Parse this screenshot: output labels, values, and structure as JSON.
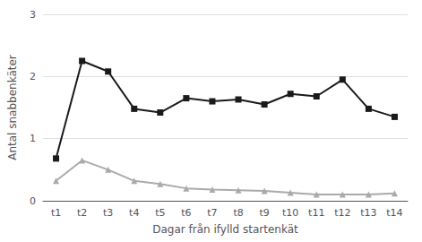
{
  "chart_data": {
    "type": "line",
    "xlabel": "Dagar från ifylld startenkät",
    "ylabel": "Antal snabbenkäter",
    "categories": [
      "t1",
      "t2",
      "t3",
      "t4",
      "t5",
      "t6",
      "t7",
      "t8",
      "t9",
      "t10",
      "t11",
      "t12",
      "t13",
      "t14"
    ],
    "series": [
      {
        "color": "#1a1a1a",
        "marker": "square",
        "values": [
          0.68,
          2.25,
          2.08,
          1.48,
          1.42,
          1.65,
          1.6,
          1.63,
          1.55,
          1.72,
          1.68,
          1.95,
          1.48,
          1.35
        ]
      },
      {
        "color": "#aaaaaa",
        "marker": "triangle",
        "values": [
          0.32,
          0.65,
          0.5,
          0.32,
          0.27,
          0.2,
          0.18,
          0.17,
          0.16,
          0.13,
          0.1,
          0.1,
          0.1,
          0.12
        ]
      }
    ],
    "ylim": [
      0,
      3
    ],
    "yticks": [
      0,
      1,
      2,
      3
    ],
    "grid": true
  }
}
